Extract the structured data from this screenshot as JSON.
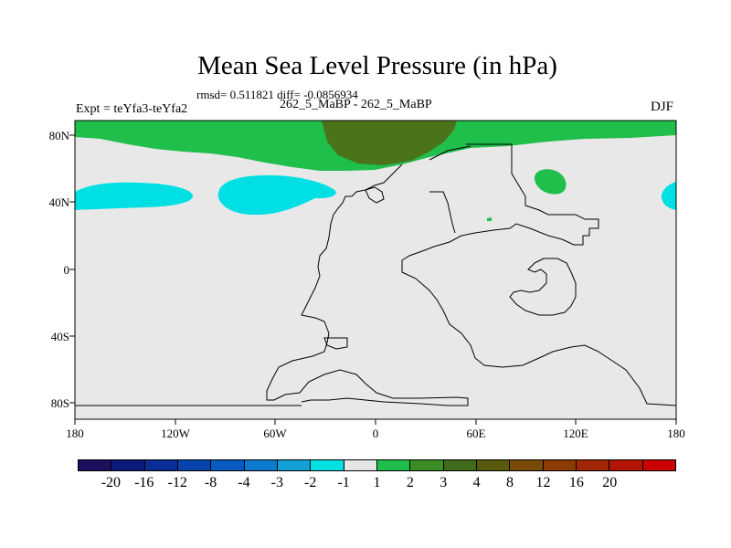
{
  "figure": {
    "title": "Mean Sea Level Pressure (in hPa)",
    "stats": "rmsd= 0.511821 diff= -0.0856934",
    "left_label": "Expt = teYfa3-teYfa2",
    "center_label": "262_5_MaBP - 262_5_MaBP",
    "right_label": "DJF"
  },
  "axes": {
    "lat_labels": [
      "80N",
      "40N",
      "0",
      "40S",
      "80S"
    ],
    "lon_labels": [
      "180",
      "120W",
      "60W",
      "0",
      "60E",
      "120E",
      "180"
    ]
  },
  "colorbar": {
    "colors": [
      "#1e0e5e",
      "#0b1a7a",
      "#0a2e96",
      "#0643ad",
      "#075ac0",
      "#0c7acd",
      "#13a0d6",
      "#03dfe3",
      "#e6e6e6",
      "#1ebe4a",
      "#3b8d24",
      "#3f6b1a",
      "#5a5a0f",
      "#7a4a0a",
      "#8c3a06",
      "#a02405",
      "#b41404",
      "#cc0000"
    ],
    "labels": [
      "-20",
      "-16",
      "-12",
      "-8",
      "-4",
      "-3",
      "-2",
      "-1",
      "1",
      "2",
      "3",
      "4",
      "8",
      "12",
      "16",
      "20"
    ]
  },
  "map_colors": {
    "background": "#e8e8e8",
    "positive_1_2": "#20be4b",
    "positive_3_4": "#4b7319",
    "negative_2_1": "#00dfe3"
  }
}
